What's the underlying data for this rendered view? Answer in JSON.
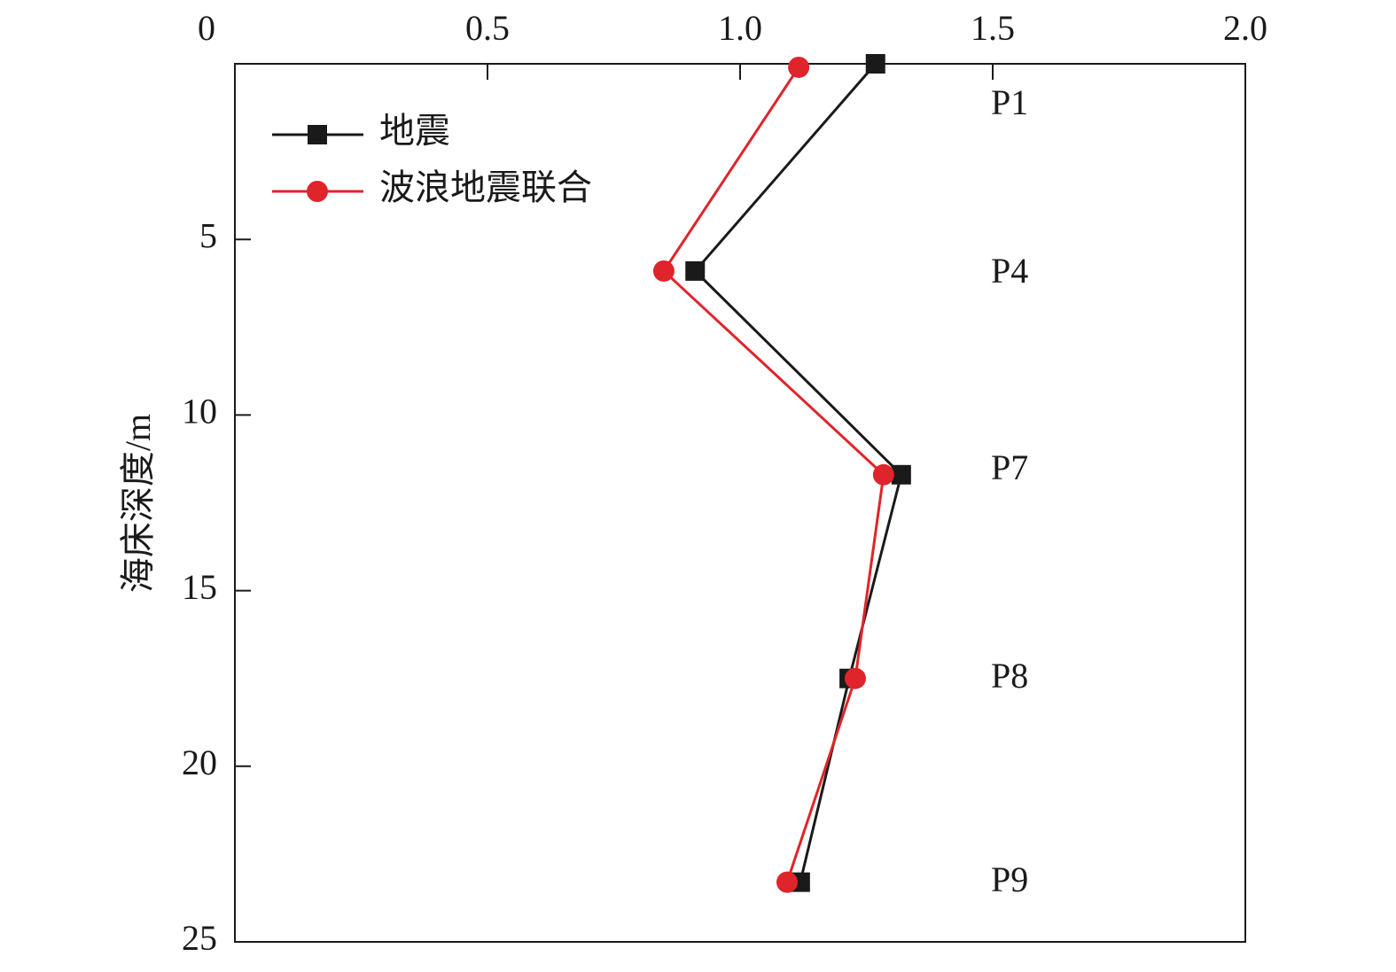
{
  "chart_data": {
    "type": "line",
    "y_label": "海床深度/m",
    "xlim": [
      0,
      2
    ],
    "xticks": [
      0,
      0.5,
      {
        "value": 1,
        "label": "1.0"
      },
      1.5,
      {
        "value": 2,
        "label": "2.0"
      }
    ],
    "ylim": [
      0,
      25
    ],
    "yticks": [
      5,
      10,
      15,
      20,
      25
    ],
    "y_inverted": true,
    "x_axis_position": "top",
    "legend": "upper left",
    "series": [
      {
        "name": "地震",
        "color": "#1a1a1a",
        "marker": "square",
        "x": [
          1.268,
          0.911,
          1.319,
          1.216,
          1.119
        ],
        "y": [
          0,
          5.9,
          11.7,
          17.5,
          23.3
        ]
      },
      {
        "name": "波浪地震联合",
        "color": "#e0242b",
        "marker": "circle",
        "x": [
          1.116,
          0.849,
          1.284,
          1.228,
          1.093
        ],
        "y": [
          0.1,
          5.9,
          11.7,
          17.5,
          23.3
        ]
      }
    ],
    "annotations": [
      "P1",
      "P4",
      "P7",
      "P8",
      "P9"
    ]
  }
}
